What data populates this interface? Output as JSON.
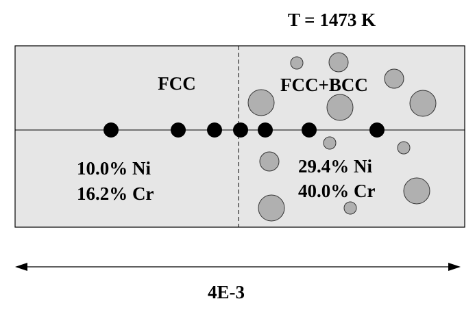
{
  "title": "T = 1473 K",
  "regions": [
    {
      "label": "FCC",
      "composition": [
        "10.0% Ni",
        "16.2% Cr"
      ]
    },
    {
      "label": "FCC+BCC",
      "composition": [
        "29.4% Ni",
        "40.0% Cr"
      ]
    }
  ],
  "scale_label": "4E-3"
}
